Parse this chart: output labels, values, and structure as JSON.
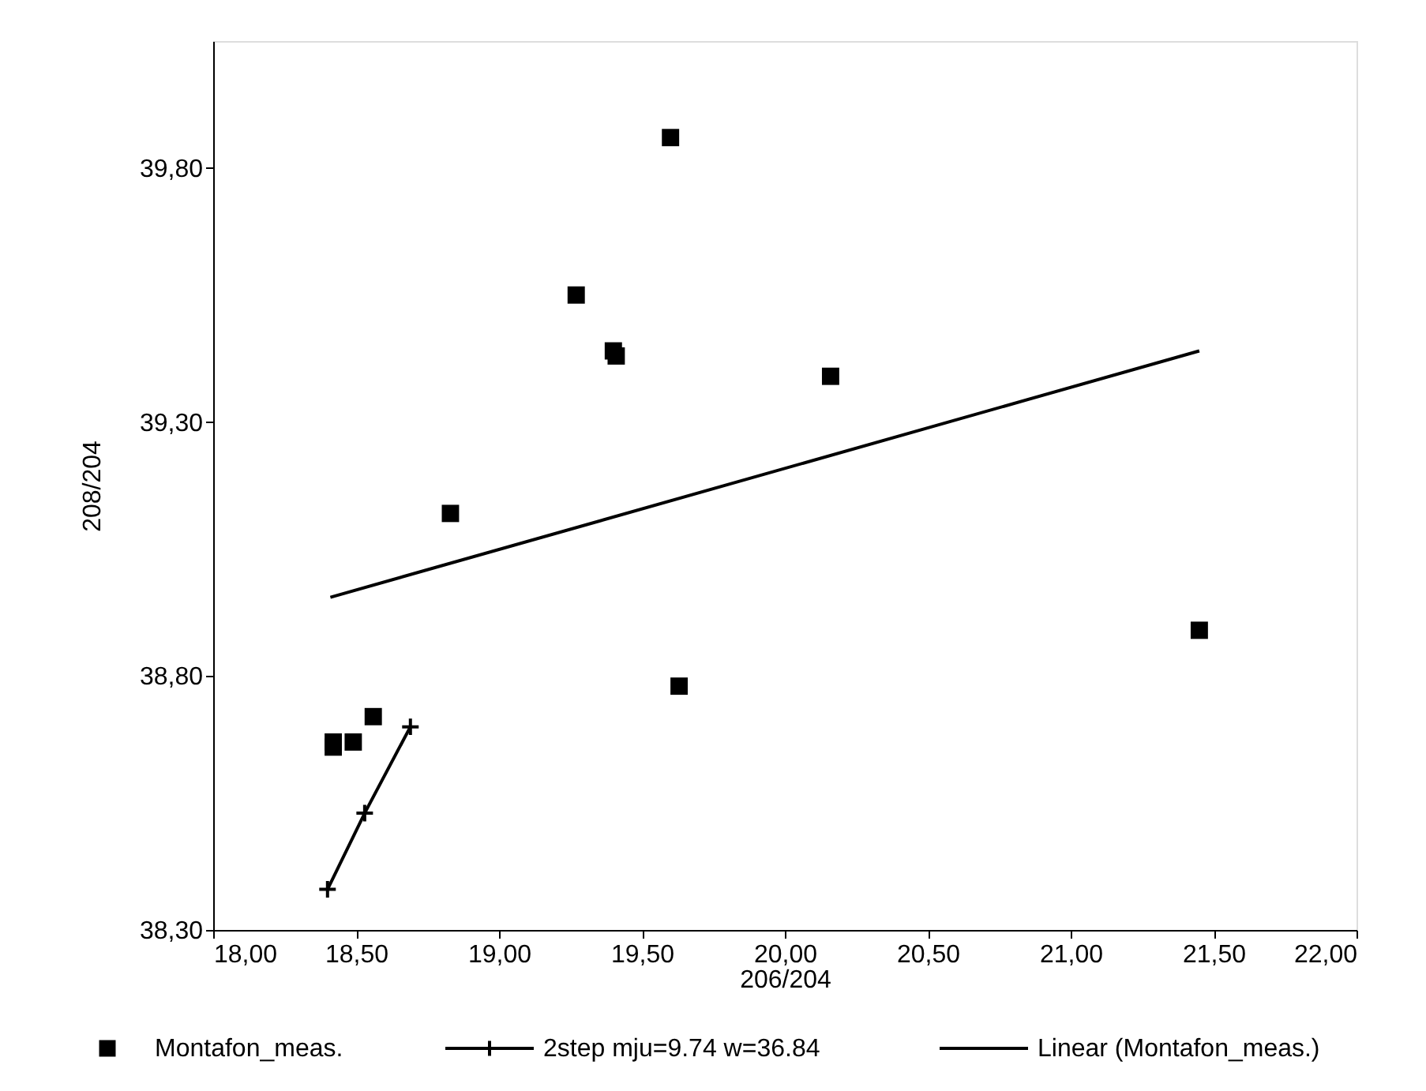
{
  "chart_data": {
    "type": "scatter",
    "xlabel": "206/204",
    "ylabel": "208/204",
    "xlim": [
      18,
      22
    ],
    "ylim": [
      38.3,
      40.05
    ],
    "xticks": [
      {
        "value": 18,
        "label": "18,00"
      },
      {
        "value": 18.5,
        "label": "18,50"
      },
      {
        "value": 19,
        "label": "19,00"
      },
      {
        "value": 19.5,
        "label": "19,50"
      },
      {
        "value": 20,
        "label": "20,00"
      },
      {
        "value": 20.5,
        "label": "20,50"
      },
      {
        "value": 21,
        "label": "21,00"
      },
      {
        "value": 21.5,
        "label": "21,50"
      },
      {
        "value": 22,
        "label": "22,00"
      }
    ],
    "yticks": [
      {
        "value": 38.3,
        "label": "38,30"
      },
      {
        "value": 38.8,
        "label": "38,80"
      },
      {
        "value": 39.3,
        "label": "39,30"
      },
      {
        "value": 39.8,
        "label": "39,80"
      }
    ],
    "grid": false,
    "legend": "bottom",
    "series": [
      {
        "name": "Montafon_meas.",
        "type": "scatter",
        "marker": "square",
        "color": "#000000",
        "x": [
          19.6,
          19.27,
          19.4,
          19.41,
          20.16,
          18.83,
          19.63,
          18.56,
          18.42,
          18.42,
          18.49,
          21.45
        ],
        "values": [
          39.86,
          39.55,
          39.44,
          39.43,
          39.39,
          39.12,
          38.78,
          38.72,
          38.67,
          38.66,
          38.67,
          38.89
        ]
      },
      {
        "name": "2step mju=9.74 w=36.84",
        "type": "line",
        "marker": "cross",
        "color": "#000000",
        "x": [
          18.4,
          18.53,
          18.69
        ],
        "values": [
          38.38,
          38.53,
          38.7
        ]
      },
      {
        "name": "Linear (Montafon_meas.)",
        "type": "line",
        "marker": "none",
        "color": "#000000",
        "x": [
          18.41,
          21.45
        ],
        "values": [
          38.955,
          39.44
        ]
      }
    ]
  }
}
